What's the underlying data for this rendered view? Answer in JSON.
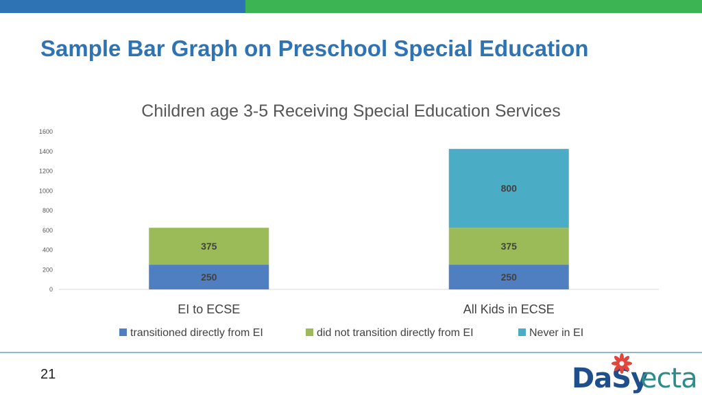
{
  "slide": {
    "title": "Sample Bar Graph on Preschool Special Education",
    "slide_number": "21",
    "logos": {
      "dasy": {
        "text": "DaSy",
        "icon": "flower-icon",
        "text_color": "#1f4e8c",
        "icon_color": "#e2453c"
      },
      "ecta": {
        "text": "ecta",
        "text_color": "#2e8b8b"
      }
    },
    "colors": {
      "topbar_left": "#2e74b5",
      "topbar_right": "#3cb454",
      "title": "#2e74b5"
    }
  },
  "chart_data": {
    "type": "bar",
    "stacked": true,
    "title": "Children age 3-5 Receiving Special Education Services",
    "xlabel": "",
    "ylabel": "",
    "ylim": [
      0,
      1600
    ],
    "yticks": [
      0,
      200,
      400,
      600,
      800,
      1000,
      1200,
      1400,
      1600
    ],
    "categories": [
      "EI to ECSE",
      "All Kids in ECSE"
    ],
    "series": [
      {
        "name": "transitioned directly from EI",
        "color": "#4f7fc1",
        "values": [
          250,
          250
        ],
        "labels": [
          "250",
          "250"
        ]
      },
      {
        "name": "did not transition directly from EI",
        "color": "#9bbb59",
        "values": [
          375,
          375
        ],
        "labels": [
          "375",
          "375"
        ]
      },
      {
        "name": "Never in EI",
        "color": "#4bacc6",
        "values": [
          0,
          800
        ],
        "labels": [
          "",
          "800"
        ]
      }
    ],
    "grid": false,
    "legend_position": "bottom"
  }
}
